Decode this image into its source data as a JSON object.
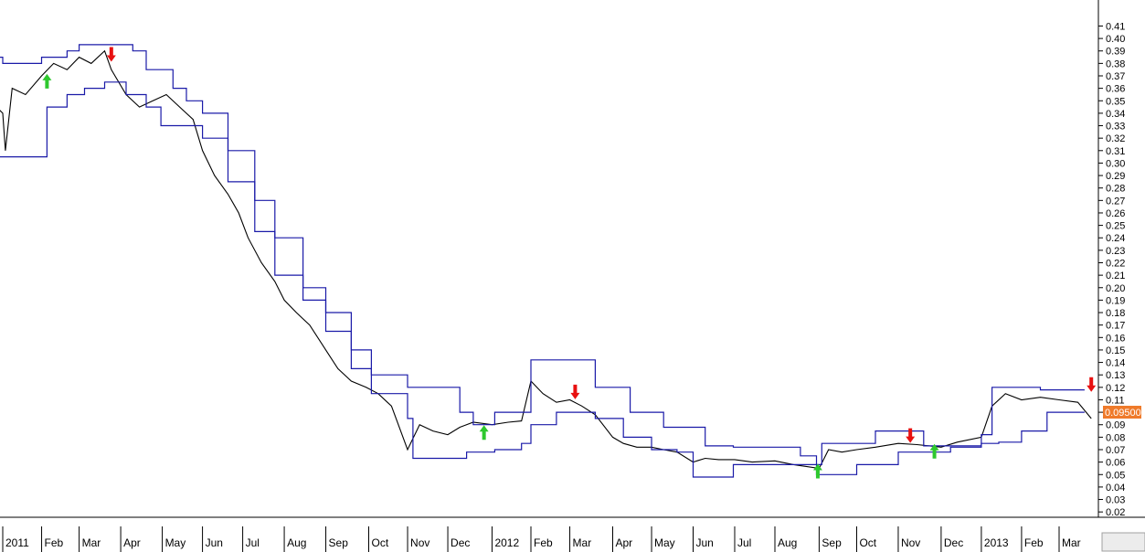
{
  "chart_data": {
    "type": "line",
    "title": "",
    "ylabel": "",
    "xlabel": "",
    "ylim": [
      0.01,
      0.42
    ],
    "grid": false,
    "last_price_label": "0.09500",
    "y_ticks": [
      "0.41",
      "0.40",
      "0.39",
      "0.38",
      "0.37",
      "0.36",
      "0.35",
      "0.34",
      "0.33",
      "0.32",
      "0.31",
      "0.30",
      "0.29",
      "0.28",
      "0.27",
      "0.26",
      "0.25",
      "0.24",
      "0.23",
      "0.22",
      "0.21",
      "0.20",
      "0.19",
      "0.18",
      "0.17",
      "0.16",
      "0.15",
      "0.14",
      "0.13",
      "0.12",
      "0.11",
      "0.10",
      "0.09",
      "0.08",
      "0.07",
      "0.06",
      "0.05",
      "0.04",
      "0.03",
      "0.02"
    ],
    "x_ticks": [
      {
        "label": "2011",
        "date": "2011-01-03"
      },
      {
        "label": "Feb",
        "date": "2011-02-01"
      },
      {
        "label": "Mar",
        "date": "2011-03-01"
      },
      {
        "label": "Apr",
        "date": "2011-04-01"
      },
      {
        "label": "May",
        "date": "2011-05-02"
      },
      {
        "label": "Jun",
        "date": "2011-06-01"
      },
      {
        "label": "Jul",
        "date": "2011-07-01"
      },
      {
        "label": "Aug",
        "date": "2011-08-01"
      },
      {
        "label": "Sep",
        "date": "2011-09-01"
      },
      {
        "label": "Oct",
        "date": "2011-10-03"
      },
      {
        "label": "Nov",
        "date": "2011-11-01"
      },
      {
        "label": "Dec",
        "date": "2011-12-01"
      },
      {
        "label": "2012",
        "date": "2012-01-03"
      },
      {
        "label": "Feb",
        "date": "2012-02-01"
      },
      {
        "label": "Mar",
        "date": "2012-03-01"
      },
      {
        "label": "Apr",
        "date": "2012-04-02"
      },
      {
        "label": "May",
        "date": "2012-05-01"
      },
      {
        "label": "Jun",
        "date": "2012-06-01"
      },
      {
        "label": "Jul",
        "date": "2012-07-02"
      },
      {
        "label": "Aug",
        "date": "2012-08-01"
      },
      {
        "label": "Sep",
        "date": "2012-09-03"
      },
      {
        "label": "Oct",
        "date": "2012-10-01"
      },
      {
        "label": "Nov",
        "date": "2012-11-01"
      },
      {
        "label": "Dec",
        "date": "2012-12-03"
      },
      {
        "label": "2013",
        "date": "2013-01-02"
      },
      {
        "label": "Feb",
        "date": "2013-02-01"
      },
      {
        "label": "Mar",
        "date": "2013-03-01"
      }
    ],
    "series": [
      {
        "color": "#000000",
        "x": [
          "2010-12-20",
          "2011-01-03",
          "2011-01-05",
          "2011-01-10",
          "2011-01-20",
          "2011-02-01",
          "2011-02-10",
          "2011-02-20",
          "2011-03-01",
          "2011-03-10",
          "2011-03-20",
          "2011-03-25",
          "2011-04-05",
          "2011-04-15",
          "2011-04-25",
          "2011-05-05",
          "2011-05-15",
          "2011-05-25",
          "2011-06-01",
          "2011-06-10",
          "2011-06-20",
          "2011-06-28",
          "2011-07-05",
          "2011-07-15",
          "2011-07-25",
          "2011-08-01",
          "2011-08-10",
          "2011-08-20",
          "2011-09-01",
          "2011-09-10",
          "2011-09-20",
          "2011-10-01",
          "2011-10-10",
          "2011-10-20",
          "2011-11-01",
          "2011-11-10",
          "2011-11-20",
          "2011-12-01",
          "2011-12-10",
          "2011-12-20",
          "2012-01-03",
          "2012-01-15",
          "2012-01-25",
          "2012-02-01",
          "2012-02-10",
          "2012-02-20",
          "2012-03-01",
          "2012-03-10",
          "2012-03-20",
          "2012-04-02",
          "2012-04-10",
          "2012-04-20",
          "2012-05-01",
          "2012-05-10",
          "2012-05-20",
          "2012-06-01",
          "2012-06-10",
          "2012-06-20",
          "2012-07-02",
          "2012-07-15",
          "2012-08-01",
          "2012-08-15",
          "2012-09-03",
          "2012-09-10",
          "2012-09-20",
          "2012-10-01",
          "2012-10-15",
          "2012-11-01",
          "2012-11-15",
          "2012-12-03",
          "2012-12-15",
          "2013-01-02",
          "2013-01-10",
          "2013-01-20",
          "2013-02-01",
          "2013-02-15",
          "2013-03-01",
          "2013-03-15",
          "2013-03-25"
        ],
        "values": [
          0.355,
          0.34,
          0.31,
          0.36,
          0.355,
          0.37,
          0.38,
          0.375,
          0.385,
          0.38,
          0.39,
          0.375,
          0.355,
          0.345,
          0.35,
          0.355,
          0.345,
          0.335,
          0.31,
          0.29,
          0.275,
          0.26,
          0.24,
          0.22,
          0.205,
          0.19,
          0.18,
          0.17,
          0.15,
          0.135,
          0.125,
          0.12,
          0.115,
          0.105,
          0.07,
          0.09,
          0.085,
          0.082,
          0.088,
          0.092,
          0.09,
          0.092,
          0.093,
          0.125,
          0.115,
          0.108,
          0.11,
          0.105,
          0.098,
          0.08,
          0.075,
          0.072,
          0.072,
          0.07,
          0.068,
          0.06,
          0.063,
          0.062,
          0.062,
          0.06,
          0.061,
          0.058,
          0.055,
          0.07,
          0.068,
          0.07,
          0.072,
          0.075,
          0.074,
          0.072,
          0.076,
          0.08,
          0.105,
          0.115,
          0.11,
          0.112,
          0.11,
          0.108,
          0.095
        ]
      },
      {
        "name": "upper",
        "color": "#1a1aa8",
        "x": [
          "2010-12-20",
          "2011-01-03",
          "2011-01-20",
          "2011-02-01",
          "2011-02-20",
          "2011-03-01",
          "2011-03-15",
          "2011-04-10",
          "2011-04-20",
          "2011-05-10",
          "2011-05-20",
          "2011-06-01",
          "2011-06-20",
          "2011-07-10",
          "2011-07-25",
          "2011-08-15",
          "2011-09-01",
          "2011-09-20",
          "2011-10-05",
          "2011-11-01",
          "2011-11-20",
          "2011-12-10",
          "2011-12-20",
          "2012-01-05",
          "2012-01-25",
          "2012-02-01",
          "2012-03-05",
          "2012-03-20",
          "2012-04-15",
          "2012-05-10",
          "2012-06-10",
          "2012-07-01",
          "2012-08-20",
          "2012-09-01",
          "2012-09-05",
          "2012-10-05",
          "2012-10-15",
          "2012-11-05",
          "2012-11-20",
          "2012-12-10",
          "2013-01-02",
          "2013-01-10",
          "2013-02-15",
          "2013-03-20"
        ],
        "values": [
          0.385,
          0.38,
          0.38,
          0.385,
          0.39,
          0.395,
          0.395,
          0.39,
          0.375,
          0.36,
          0.35,
          0.34,
          0.31,
          0.27,
          0.24,
          0.2,
          0.18,
          0.15,
          0.13,
          0.12,
          0.12,
          0.1,
          0.09,
          0.1,
          0.1,
          0.142,
          0.142,
          0.12,
          0.1,
          0.088,
          0.073,
          0.072,
          0.065,
          0.058,
          0.075,
          0.075,
          0.085,
          0.085,
          0.073,
          0.073,
          0.082,
          0.12,
          0.118,
          0.118
        ]
      },
      {
        "name": "lower",
        "color": "#1a1aa8",
        "x": [
          "2010-12-20",
          "2011-01-03",
          "2011-01-20",
          "2011-02-05",
          "2011-02-20",
          "2011-03-05",
          "2011-03-20",
          "2011-04-05",
          "2011-04-20",
          "2011-05-01",
          "2011-05-20",
          "2011-06-01",
          "2011-06-20",
          "2011-07-10",
          "2011-07-25",
          "2011-08-15",
          "2011-09-01",
          "2011-09-20",
          "2011-10-05",
          "2011-11-01",
          "2011-11-05",
          "2011-12-01",
          "2011-12-15",
          "2012-01-05",
          "2012-01-25",
          "2012-02-01",
          "2012-02-20",
          "2012-03-05",
          "2012-03-20",
          "2012-04-10",
          "2012-05-01",
          "2012-05-20",
          "2012-06-01",
          "2012-06-15",
          "2012-07-01",
          "2012-08-01",
          "2012-08-20",
          "2012-09-01",
          "2012-09-10",
          "2012-10-01",
          "2012-11-01",
          "2012-11-20",
          "2012-12-10",
          "2013-01-02",
          "2013-01-15",
          "2013-02-01",
          "2013-02-20",
          "2013-03-01",
          "2013-03-20"
        ],
        "values": [
          0.305,
          0.305,
          0.305,
          0.345,
          0.355,
          0.36,
          0.365,
          0.355,
          0.345,
          0.33,
          0.33,
          0.32,
          0.285,
          0.245,
          0.21,
          0.19,
          0.165,
          0.135,
          0.115,
          0.095,
          0.063,
          0.063,
          0.068,
          0.07,
          0.075,
          0.09,
          0.1,
          0.1,
          0.095,
          0.08,
          0.07,
          0.068,
          0.048,
          0.048,
          0.058,
          0.058,
          0.058,
          0.05,
          0.05,
          0.058,
          0.068,
          0.068,
          0.072,
          0.075,
          0.076,
          0.085,
          0.1,
          0.1,
          0.1
        ]
      }
    ],
    "signals": [
      {
        "type": "buy",
        "date": "2011-02-05",
        "price": 0.365
      },
      {
        "type": "sell",
        "date": "2011-03-25",
        "price": 0.388
      },
      {
        "type": "buy",
        "date": "2011-12-28",
        "price": 0.083
      },
      {
        "type": "sell",
        "date": "2012-03-05",
        "price": 0.117
      },
      {
        "type": "buy",
        "date": "2012-09-02",
        "price": 0.052
      },
      {
        "type": "sell",
        "date": "2012-11-10",
        "price": 0.082
      },
      {
        "type": "buy",
        "date": "2012-11-28",
        "price": 0.068
      },
      {
        "type": "sell",
        "date": "2013-03-25",
        "price": 0.123
      }
    ]
  }
}
